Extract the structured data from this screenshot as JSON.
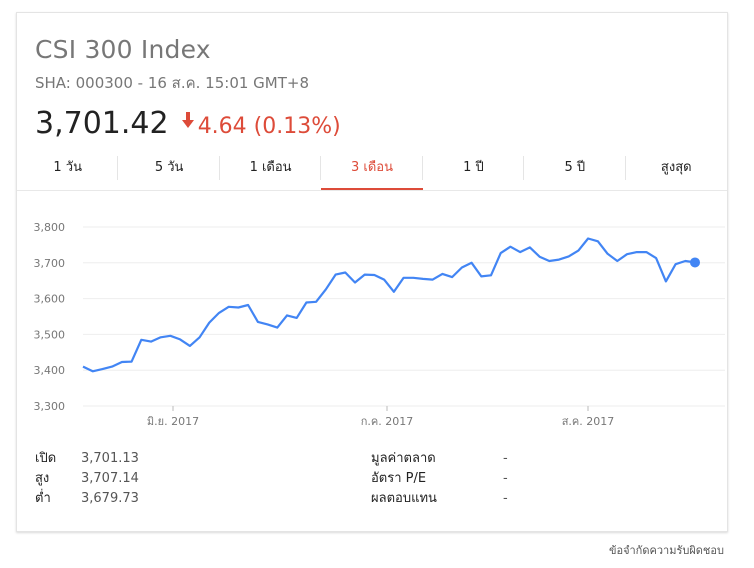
{
  "header": {
    "title": "CSI 300 Index",
    "subtitle": "SHA: 000300 - 16 ส.ค. 15:01 GMT+8",
    "price": "3,701.42",
    "change": "4.64 (0.13%)",
    "change_color": "#dd4b39"
  },
  "tabs": [
    {
      "label": "1 วัน"
    },
    {
      "label": "5 วัน"
    },
    {
      "label": "1 เดือน"
    },
    {
      "label": "3 เดือน",
      "active": true
    },
    {
      "label": "1 ปี"
    },
    {
      "label": "5 ปี"
    },
    {
      "label": "สูงสุด"
    }
  ],
  "chart_data": {
    "type": "line",
    "ylim": [
      3300,
      3800
    ],
    "yticks": [
      "3,800",
      "3,700",
      "3,600",
      "3,500",
      "3,400",
      "3,300"
    ],
    "xticks": [
      "มิ.ย. 2017",
      "ก.ค. 2017",
      "ส.ค. 2017"
    ],
    "line_color": "#4285f4",
    "grid": true,
    "values": [
      3410,
      3397,
      3403,
      3410,
      3423,
      3424,
      3485,
      3480,
      3492,
      3496,
      3486,
      3468,
      3492,
      3533,
      3560,
      3577,
      3575,
      3582,
      3535,
      3528,
      3519,
      3553,
      3546,
      3589,
      3591,
      3626,
      3667,
      3673,
      3645,
      3667,
      3666,
      3653,
      3619,
      3658,
      3658,
      3655,
      3653,
      3669,
      3660,
      3687,
      3700,
      3662,
      3665,
      3727,
      3745,
      3730,
      3743,
      3717,
      3705,
      3709,
      3718,
      3734,
      3768,
      3760,
      3725,
      3705,
      3724,
      3730,
      3730,
      3713,
      3648,
      3696,
      3705,
      3701
    ]
  },
  "stats_left": [
    {
      "label": "เปิด",
      "value": "3,701.13"
    },
    {
      "label": "สูง",
      "value": "3,707.14"
    },
    {
      "label": "ต่ำ",
      "value": "3,679.73"
    }
  ],
  "stats_right": [
    {
      "label": "มูลค่าตลาด",
      "value": "-"
    },
    {
      "label": "อัตรา P/E",
      "value": "-"
    },
    {
      "label": "ผลตอบแทน",
      "value": "-"
    }
  ],
  "disclaimer": "ข้อจำกัดความรับผิดชอบ"
}
